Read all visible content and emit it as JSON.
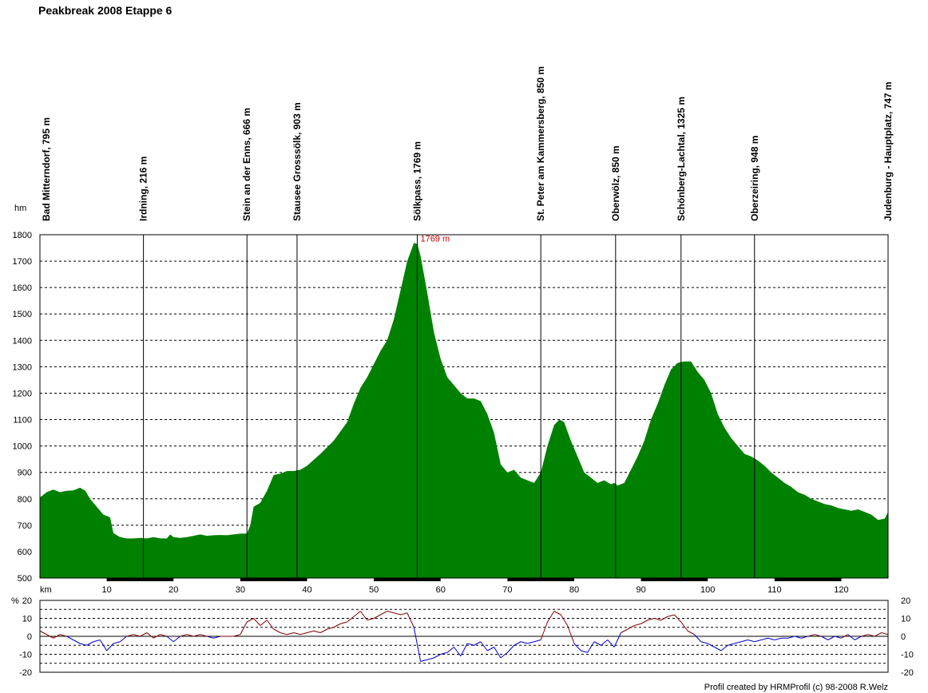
{
  "chart_data": {
    "type": "area",
    "title": "Peakbreak 2008 Etappe 6",
    "credit": "Profil created by HRMProfil (c) 98-2008 R.Welz",
    "profile": {
      "ylabel": "hm",
      "xlabel": "km",
      "ylim": [
        500,
        1800
      ],
      "xlim": [
        0,
        127
      ],
      "yticks": [
        500,
        600,
        700,
        800,
        900,
        1000,
        1100,
        1200,
        1300,
        1400,
        1500,
        1600,
        1700,
        1800
      ],
      "xticks": [
        10,
        20,
        30,
        40,
        50,
        60,
        70,
        80,
        90,
        100,
        110,
        120
      ],
      "fill_color": "#008000",
      "grid": true,
      "peak_label": "1769 m",
      "peak": {
        "x": 56.5,
        "y": 1769
      },
      "x": [
        0,
        1,
        2,
        3,
        4,
        5,
        6,
        6.8,
        7.5,
        8.5,
        9.5,
        10.5,
        11,
        12,
        13,
        14,
        15,
        16,
        17,
        18,
        19,
        19.5,
        20,
        21,
        22,
        23,
        24,
        25,
        26,
        27,
        28,
        29,
        30,
        31,
        31.5,
        32,
        33,
        34,
        35,
        36,
        37,
        38,
        39,
        40,
        42,
        44,
        46,
        47,
        48,
        49,
        50,
        51,
        52,
        53,
        54,
        55,
        56,
        56.5,
        57,
        58,
        59,
        60,
        61,
        62,
        63,
        64,
        65,
        66,
        67,
        68,
        69,
        70,
        71,
        72,
        73,
        74,
        75,
        76,
        77,
        77.8,
        78.5,
        79.5,
        80.5,
        81.5,
        82.5,
        83.5,
        84.5,
        85.5,
        86,
        86.5,
        87.5,
        88.5,
        89.5,
        90.5,
        91.5,
        92.5,
        93.5,
        94.5,
        95.5,
        96.5,
        97.5,
        98.5,
        99.5,
        100.5,
        101.5,
        102.5,
        103.5,
        104.5,
        105.5,
        106.5,
        107.5,
        108.5,
        109.5,
        110.5,
        111.5,
        112.5,
        113.5,
        114.5,
        115.5,
        116.5,
        117.5,
        118.5,
        119.5,
        120.5,
        121.5,
        122.5,
        123.5,
        124.5,
        125.5,
        126.5,
        127
      ],
      "y": [
        805,
        825,
        835,
        825,
        830,
        832,
        842,
        830,
        800,
        770,
        740,
        730,
        670,
        655,
        650,
        650,
        652,
        650,
        655,
        650,
        650,
        665,
        655,
        652,
        655,
        660,
        665,
        660,
        662,
        663,
        662,
        665,
        668,
        668,
        700,
        770,
        785,
        830,
        890,
        895,
        905,
        905,
        910,
        925,
        970,
        1020,
        1090,
        1160,
        1220,
        1260,
        1310,
        1360,
        1400,
        1480,
        1590,
        1700,
        1769,
        1765,
        1720,
        1580,
        1430,
        1330,
        1260,
        1230,
        1200,
        1180,
        1180,
        1170,
        1120,
        1050,
        930,
        900,
        910,
        880,
        870,
        860,
        900,
        1000,
        1080,
        1100,
        1090,
        1020,
        960,
        900,
        880,
        860,
        870,
        855,
        860,
        850,
        860,
        910,
        960,
        1020,
        1100,
        1160,
        1230,
        1290,
        1315,
        1320,
        1320,
        1280,
        1250,
        1200,
        1120,
        1070,
        1030,
        1000,
        970,
        960,
        945,
        925,
        900,
        880,
        860,
        845,
        825,
        815,
        800,
        790,
        780,
        775,
        765,
        760,
        755,
        760,
        750,
        740,
        720,
        725,
        750
      ]
    },
    "gradient": {
      "ylabel": "%",
      "ylim": [
        -20,
        20
      ],
      "yticks": [
        -20,
        -10,
        0,
        10,
        20
      ],
      "positive_color": "#800000",
      "negative_color": "#0000cc",
      "x": [
        0,
        1,
        2,
        3,
        4,
        5,
        6,
        7,
        8,
        9,
        10,
        11,
        12,
        13,
        14,
        15,
        16,
        17,
        18,
        19,
        20,
        21,
        22,
        23,
        24,
        25,
        26,
        27,
        28,
        29,
        30,
        31,
        32,
        33,
        34,
        35,
        36,
        37,
        38,
        39,
        40,
        41,
        42,
        43,
        44,
        45,
        46,
        47,
        48,
        49,
        50,
        51,
        52,
        53,
        54,
        55,
        56,
        57,
        58,
        59,
        60,
        61,
        62,
        63,
        64,
        65,
        66,
        67,
        68,
        69,
        70,
        71,
        72,
        73,
        74,
        75,
        76,
        77,
        78,
        79,
        80,
        81,
        82,
        83,
        84,
        85,
        86,
        87,
        88,
        89,
        90,
        91,
        92,
        93,
        94,
        95,
        96,
        97,
        98,
        99,
        100,
        101,
        102,
        103,
        104,
        105,
        106,
        107,
        108,
        109,
        110,
        111,
        112,
        113,
        114,
        115,
        116,
        117,
        118,
        119,
        120,
        121,
        122,
        123,
        124,
        125,
        126,
        127
      ],
      "values": [
        3,
        1,
        -1,
        1,
        0,
        -2,
        -4,
        -5,
        -3,
        -2,
        -8,
        -4,
        -3,
        0,
        1,
        0,
        2,
        -1,
        1,
        0,
        -3,
        0,
        1,
        0,
        1,
        0,
        -1,
        0,
        0,
        0,
        1,
        8,
        10,
        6,
        9,
        4,
        2,
        1,
        2,
        1,
        2,
        3,
        2,
        4,
        5,
        7,
        8,
        11,
        14,
        9,
        10,
        12,
        14,
        13,
        12,
        13,
        5,
        -14,
        -13,
        -12,
        -10,
        -9,
        -6,
        -11,
        -4,
        -5,
        -3,
        -8,
        -6,
        -12,
        -9,
        -5,
        -3,
        -4,
        -3,
        -2,
        8,
        14,
        12,
        6,
        -4,
        -8,
        -9,
        -3,
        -5,
        -2,
        -6,
        2,
        4,
        6,
        7,
        9,
        10,
        9,
        11,
        12,
        8,
        3,
        1,
        -3,
        -4,
        -6,
        -8,
        -5,
        -4,
        -3,
        -2,
        -3,
        -2,
        -1,
        -2,
        -1,
        -1,
        0,
        -1,
        0,
        1,
        0,
        -2,
        0,
        -1,
        1,
        -2,
        0,
        1,
        0,
        2,
        1
      ]
    },
    "waypoints": [
      {
        "label": "Bad Mitterndorf, 795 m",
        "km": 0
      },
      {
        "label": "Irdning, 216 m",
        "km": 15.5
      },
      {
        "label": "Stein an der Enns, 666 m",
        "km": 31
      },
      {
        "label": "Stausee Grosssölk, 903 m",
        "km": 38.5
      },
      {
        "label": "Sölkpass, 1769 m",
        "km": 56.5
      },
      {
        "label": "St. Peter am Kammersberg, 850 m",
        "km": 75
      },
      {
        "label": "Oberwölz, 850 m",
        "km": 86.2
      },
      {
        "label": "Schönberg-Lachtal, 1325 m",
        "km": 96
      },
      {
        "label": "Oberzeiring, 948 m",
        "km": 107
      },
      {
        "label": "Judenburg - Hauptplatz, 747 m",
        "km": 127
      }
    ]
  }
}
